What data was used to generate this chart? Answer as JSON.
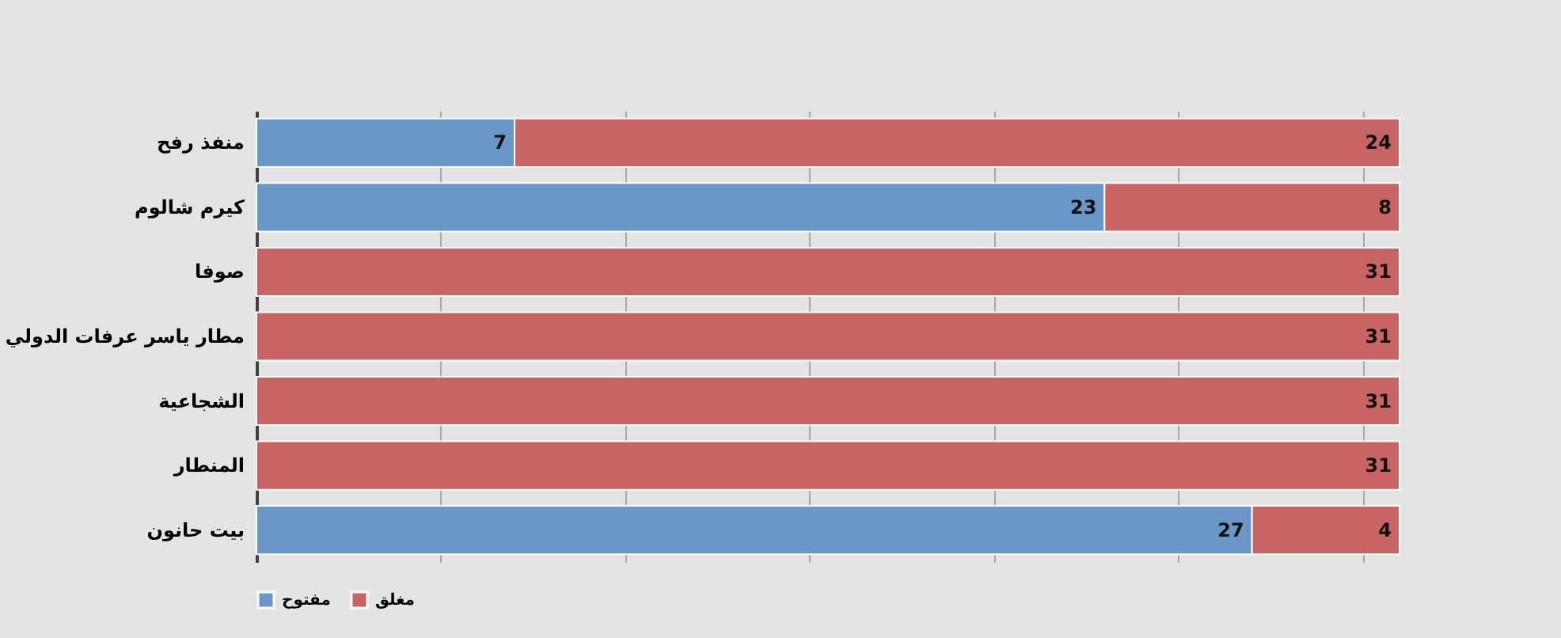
{
  "chart_data": {
    "type": "bar",
    "orientation": "horizontal",
    "stacked": true,
    "categories": [
      "منفذ رفح",
      "كيرم شالوم",
      "صوفا",
      "مطار ياسر عرفات الدولي",
      "الشجاعية",
      "المنطار",
      "بيت حانون"
    ],
    "series": [
      {
        "name": "مفتوح",
        "color": "#6a96c8",
        "values": [
          7,
          23,
          0,
          0,
          0,
          0,
          27
        ],
        "value_labels": [
          "7",
          "23",
          null,
          null,
          null,
          null,
          "27"
        ]
      },
      {
        "name": "مغلق",
        "color": "#c86464",
        "values": [
          24,
          8,
          31,
          31,
          31,
          31,
          4
        ],
        "value_labels": [
          "24",
          "8",
          "31",
          "31",
          "31",
          "31",
          "4"
        ]
      }
    ],
    "xlim": [
      0,
      31
    ],
    "xticks": [
      {
        "value": 0,
        "label": null
      },
      {
        "value": 5,
        "label": null
      },
      {
        "value": 10,
        "label": null
      },
      {
        "value": 15,
        "label": null
      },
      {
        "value": 20,
        "label": null
      },
      {
        "value": 25,
        "label": null
      },
      {
        "value": 30,
        "label": null
      }
    ],
    "tick_labels": "y",
    "grid": "x",
    "legend": "bottom"
  }
}
